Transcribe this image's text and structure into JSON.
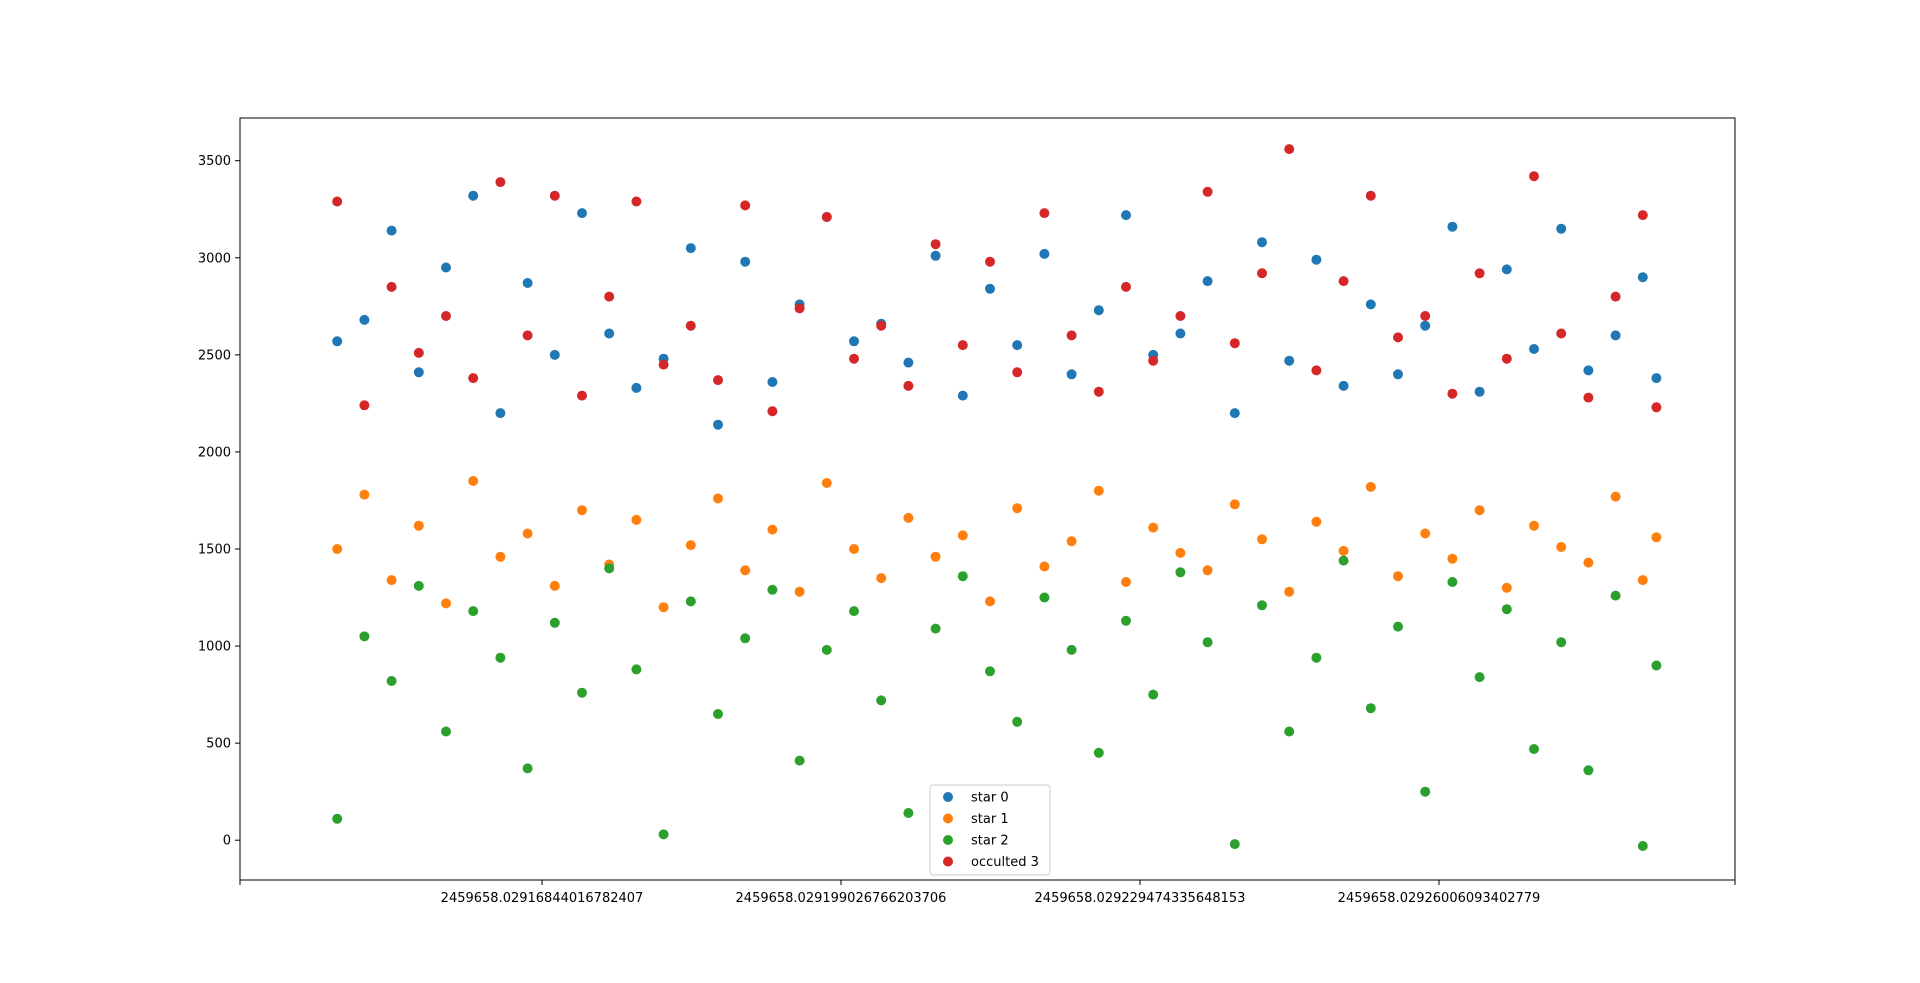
{
  "chart_data": {
    "type": "scatter",
    "title": "",
    "xlabel": "",
    "ylabel": "",
    "ylim": [
      -205,
      3720
    ],
    "y_ticks": [
      0,
      500,
      1000,
      1500,
      2000,
      2500,
      3000,
      3500
    ],
    "y_tick_labels": [
      "0",
      "500",
      "1000",
      "1500",
      "2000",
      "2500",
      "3000",
      "3500"
    ],
    "x_tick_labels": [
      "2459658.02916844016782407",
      "2459658.029199026766203706",
      "2459658.029229474335648153",
      "2459658.02926006093402779"
    ],
    "legend_position": "bottom-center",
    "grid": false,
    "series": [
      {
        "name": "star 0",
        "color": "#1f77b4",
        "x": [
          0.02,
          0.04,
          0.06,
          0.08,
          0.1,
          0.12,
          0.14,
          0.16,
          0.18,
          0.2,
          0.22,
          0.24,
          0.26,
          0.28,
          0.3,
          0.32,
          0.34,
          0.36,
          0.38,
          0.4,
          0.42,
          0.44,
          0.46,
          0.48,
          0.5,
          0.52,
          0.54,
          0.56,
          0.58,
          0.6,
          0.62,
          0.64,
          0.66,
          0.68,
          0.7,
          0.72,
          0.74,
          0.76,
          0.78,
          0.8,
          0.82,
          0.84,
          0.86,
          0.88,
          0.9,
          0.92,
          0.94,
          0.96,
          0.98,
          0.99
        ],
        "y": [
          2570,
          2680,
          3140,
          2410,
          2950,
          3320,
          2200,
          2870,
          2500,
          3230,
          2610,
          2330,
          2480,
          3050,
          2140,
          2980,
          2360,
          2760,
          3210,
          2570,
          2660,
          2460,
          3010,
          2290,
          2840,
          2550,
          3020,
          2400,
          2730,
          3220,
          2500,
          2610,
          2880,
          2200,
          3080,
          2470,
          2990,
          2340,
          2760,
          2400,
          2650,
          3160,
          2310,
          2940,
          2530,
          3150,
          2420,
          2600,
          2900,
          2380
        ]
      },
      {
        "name": "star 1",
        "color": "#ff7f0e",
        "x": [
          0.02,
          0.04,
          0.06,
          0.08,
          0.1,
          0.12,
          0.14,
          0.16,
          0.18,
          0.2,
          0.22,
          0.24,
          0.26,
          0.28,
          0.3,
          0.32,
          0.34,
          0.36,
          0.38,
          0.4,
          0.42,
          0.44,
          0.46,
          0.48,
          0.5,
          0.52,
          0.54,
          0.56,
          0.58,
          0.6,
          0.62,
          0.64,
          0.66,
          0.68,
          0.7,
          0.72,
          0.74,
          0.76,
          0.78,
          0.8,
          0.82,
          0.84,
          0.86,
          0.88,
          0.9,
          0.92,
          0.94,
          0.96,
          0.98,
          0.99
        ],
        "y": [
          1500,
          1780,
          1340,
          1620,
          1220,
          1850,
          1460,
          1580,
          1310,
          1700,
          1420,
          1650,
          1200,
          1520,
          1760,
          1390,
          1600,
          1280,
          1840,
          1500,
          1350,
          1660,
          1460,
          1570,
          1230,
          1710,
          1410,
          1540,
          1800,
          1330,
          1610,
          1480,
          1390,
          1730,
          1550,
          1280,
          1640,
          1490,
          1820,
          1360,
          1580,
          1450,
          1700,
          1300,
          1620,
          1510,
          1430,
          1770,
          1340,
          1560
        ]
      },
      {
        "name": "star 2",
        "color": "#2ca02c",
        "x": [
          0.02,
          0.04,
          0.06,
          0.08,
          0.1,
          0.12,
          0.14,
          0.16,
          0.18,
          0.2,
          0.22,
          0.24,
          0.26,
          0.28,
          0.3,
          0.32,
          0.34,
          0.36,
          0.38,
          0.4,
          0.42,
          0.44,
          0.46,
          0.48,
          0.5,
          0.52,
          0.54,
          0.56,
          0.58,
          0.6,
          0.62,
          0.64,
          0.66,
          0.68,
          0.7,
          0.72,
          0.74,
          0.76,
          0.78,
          0.8,
          0.82,
          0.84,
          0.86,
          0.88,
          0.9,
          0.92,
          0.94,
          0.96,
          0.98,
          0.99
        ],
        "y": [
          110,
          1050,
          820,
          1310,
          560,
          1180,
          940,
          370,
          1120,
          760,
          1400,
          880,
          30,
          1230,
          650,
          1040,
          1290,
          410,
          980,
          1180,
          720,
          140,
          1090,
          1360,
          870,
          610,
          1250,
          980,
          450,
          1130,
          750,
          1380,
          1020,
          -20,
          1210,
          560,
          940,
          1440,
          680,
          1100,
          250,
          1330,
          840,
          1190,
          470,
          1020,
          360,
          1260,
          -30,
          900
        ]
      },
      {
        "name": "occulted 3",
        "color": "#d62728",
        "x": [
          0.02,
          0.04,
          0.06,
          0.08,
          0.1,
          0.12,
          0.14,
          0.16,
          0.18,
          0.2,
          0.22,
          0.24,
          0.26,
          0.28,
          0.3,
          0.32,
          0.34,
          0.36,
          0.38,
          0.4,
          0.42,
          0.44,
          0.46,
          0.48,
          0.5,
          0.52,
          0.54,
          0.56,
          0.58,
          0.6,
          0.62,
          0.64,
          0.66,
          0.68,
          0.7,
          0.72,
          0.74,
          0.76,
          0.78,
          0.8,
          0.82,
          0.84,
          0.86,
          0.88,
          0.9,
          0.92,
          0.94,
          0.96,
          0.98,
          0.99
        ],
        "y": [
          3290,
          2240,
          2850,
          2510,
          2700,
          2380,
          3390,
          2600,
          3320,
          2290,
          2800,
          3290,
          2450,
          2650,
          2370,
          3270,
          2210,
          2740,
          3210,
          2480,
          2650,
          2340,
          3070,
          2550,
          2980,
          2410,
          3230,
          2600,
          2310,
          2850,
          2470,
          2700,
          3340,
          2560,
          2920,
          3560,
          2420,
          2880,
          3320,
          2590,
          2700,
          2300,
          2920,
          2480,
          3420,
          2610,
          2280,
          2800,
          3220,
          2230
        ]
      }
    ]
  }
}
